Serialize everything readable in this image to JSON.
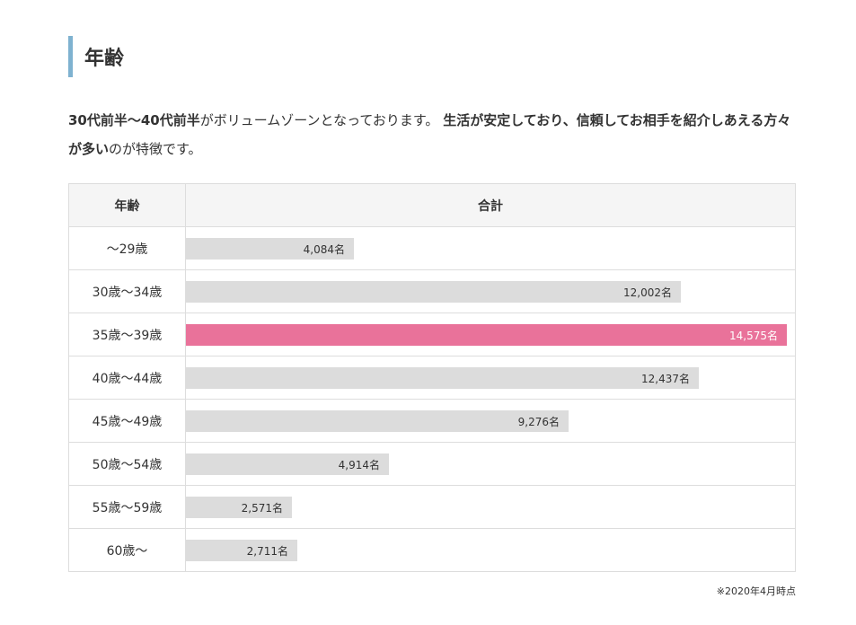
{
  "heading": "年齢",
  "intro": {
    "part1_bold": "30代前半〜40代前半",
    "part2": "がボリュームゾーンとなっております。",
    "part3_bold": "生活が安定しており、信頼してお相手を紹介しあえる方々が多い",
    "part4": "のが特徴です。"
  },
  "table": {
    "header_age": "年齢",
    "header_total": "合計"
  },
  "chart_data": {
    "type": "bar",
    "orientation": "horizontal",
    "categories": [
      "〜29歳",
      "30歳〜34歳",
      "35歳〜39歳",
      "40歳〜44歳",
      "45歳〜49歳",
      "50歳〜54歳",
      "55歳〜59歳",
      "60歳〜"
    ],
    "values": [
      4084,
      12002,
      14575,
      12437,
      9276,
      4914,
      2571,
      2711
    ],
    "value_labels": [
      "4,084名",
      "12,002名",
      "14,575名",
      "12,437名",
      "9,276名",
      "4,914名",
      "2,571名",
      "2,711名"
    ],
    "highlight_index": 2,
    "bar_color": "#dcdcdc",
    "highlight_color": "#e9729a",
    "xmax": 14575
  },
  "note": "※2020年4月時点"
}
